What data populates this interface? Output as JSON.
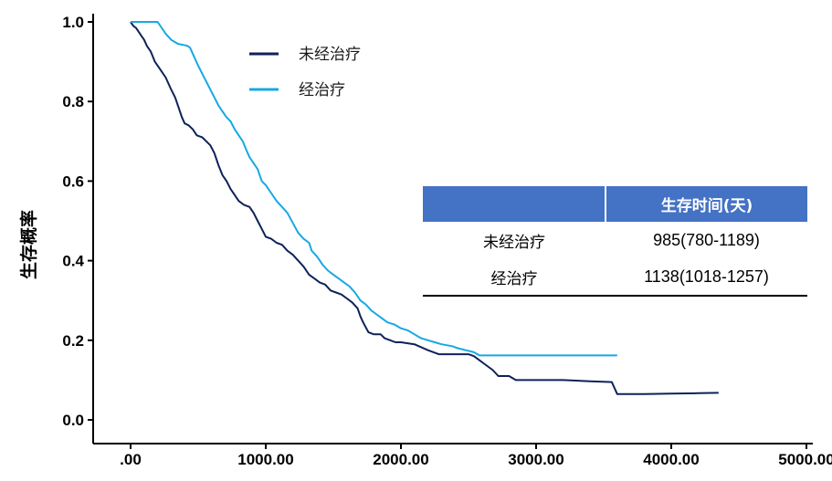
{
  "chart_data": {
    "type": "line",
    "title": "",
    "xlabel": "",
    "ylabel": "生存概率",
    "xlim": [
      0,
      5000
    ],
    "ylim": [
      0,
      1.0
    ],
    "x_ticks": [
      ".00",
      "1000.00",
      "2000.00",
      "3000.00",
      "4000.00",
      "5000.00"
    ],
    "x_tick_values": [
      0,
      1000,
      2000,
      3000,
      4000,
      5000
    ],
    "y_ticks": [
      "0.0",
      "0.2",
      "0.4",
      "0.6",
      "0.8",
      "1.0"
    ],
    "y_tick_values": [
      0,
      0.2,
      0.4,
      0.6,
      0.8,
      1.0
    ],
    "legend_position": "top",
    "series": [
      {
        "name": "未经治疗",
        "color": "#0d2259",
        "points": [
          [
            0,
            1.0
          ],
          [
            20,
            0.99
          ],
          [
            40,
            0.985
          ],
          [
            60,
            0.975
          ],
          [
            80,
            0.965
          ],
          [
            100,
            0.955
          ],
          [
            120,
            0.94
          ],
          [
            150,
            0.925
          ],
          [
            180,
            0.9
          ],
          [
            220,
            0.88
          ],
          [
            260,
            0.86
          ],
          [
            300,
            0.83
          ],
          [
            330,
            0.81
          ],
          [
            360,
            0.78
          ],
          [
            380,
            0.76
          ],
          [
            400,
            0.745
          ],
          [
            430,
            0.74
          ],
          [
            460,
            0.73
          ],
          [
            490,
            0.715
          ],
          [
            530,
            0.71
          ],
          [
            560,
            0.7
          ],
          [
            590,
            0.69
          ],
          [
            620,
            0.67
          ],
          [
            650,
            0.64
          ],
          [
            680,
            0.615
          ],
          [
            710,
            0.6
          ],
          [
            740,
            0.58
          ],
          [
            770,
            0.565
          ],
          [
            800,
            0.55
          ],
          [
            840,
            0.54
          ],
          [
            880,
            0.535
          ],
          [
            910,
            0.52
          ],
          [
            940,
            0.5
          ],
          [
            970,
            0.48
          ],
          [
            1000,
            0.46
          ],
          [
            1040,
            0.455
          ],
          [
            1080,
            0.445
          ],
          [
            1120,
            0.44
          ],
          [
            1160,
            0.425
          ],
          [
            1200,
            0.415
          ],
          [
            1240,
            0.4
          ],
          [
            1280,
            0.385
          ],
          [
            1320,
            0.365
          ],
          [
            1360,
            0.355
          ],
          [
            1400,
            0.345
          ],
          [
            1440,
            0.34
          ],
          [
            1480,
            0.325
          ],
          [
            1520,
            0.32
          ],
          [
            1560,
            0.315
          ],
          [
            1600,
            0.305
          ],
          [
            1640,
            0.295
          ],
          [
            1680,
            0.28
          ],
          [
            1700,
            0.26
          ],
          [
            1720,
            0.245
          ],
          [
            1760,
            0.22
          ],
          [
            1800,
            0.215
          ],
          [
            1850,
            0.215
          ],
          [
            1880,
            0.205
          ],
          [
            1920,
            0.2
          ],
          [
            1960,
            0.195
          ],
          [
            2000,
            0.195
          ],
          [
            2100,
            0.19
          ],
          [
            2200,
            0.175
          ],
          [
            2280,
            0.165
          ],
          [
            2350,
            0.165
          ],
          [
            2500,
            0.165
          ],
          [
            2540,
            0.16
          ],
          [
            2580,
            0.15
          ],
          [
            2620,
            0.14
          ],
          [
            2680,
            0.125
          ],
          [
            2720,
            0.11
          ],
          [
            2800,
            0.11
          ],
          [
            2850,
            0.1
          ],
          [
            3000,
            0.1
          ],
          [
            3200,
            0.1
          ],
          [
            3400,
            0.097
          ],
          [
            3560,
            0.095
          ],
          [
            3600,
            0.065
          ],
          [
            3800,
            0.065
          ],
          [
            4000,
            0.066
          ],
          [
            4200,
            0.067
          ],
          [
            4350,
            0.068
          ]
        ]
      },
      {
        "name": "经治疗",
        "color": "#17a8e3",
        "points": [
          [
            0,
            1.0
          ],
          [
            100,
            1.0
          ],
          [
            200,
            1.0
          ],
          [
            230,
            0.985
          ],
          [
            260,
            0.97
          ],
          [
            300,
            0.955
          ],
          [
            350,
            0.945
          ],
          [
            420,
            0.94
          ],
          [
            440,
            0.935
          ],
          [
            460,
            0.92
          ],
          [
            480,
            0.905
          ],
          [
            500,
            0.89
          ],
          [
            530,
            0.87
          ],
          [
            560,
            0.85
          ],
          [
            590,
            0.83
          ],
          [
            620,
            0.81
          ],
          [
            650,
            0.79
          ],
          [
            680,
            0.775
          ],
          [
            710,
            0.76
          ],
          [
            740,
            0.75
          ],
          [
            770,
            0.73
          ],
          [
            800,
            0.715
          ],
          [
            830,
            0.7
          ],
          [
            860,
            0.675
          ],
          [
            880,
            0.66
          ],
          [
            910,
            0.645
          ],
          [
            940,
            0.63
          ],
          [
            970,
            0.6
          ],
          [
            1000,
            0.59
          ],
          [
            1040,
            0.57
          ],
          [
            1080,
            0.55
          ],
          [
            1120,
            0.535
          ],
          [
            1160,
            0.52
          ],
          [
            1200,
            0.495
          ],
          [
            1240,
            0.47
          ],
          [
            1280,
            0.455
          ],
          [
            1320,
            0.445
          ],
          [
            1340,
            0.425
          ],
          [
            1380,
            0.41
          ],
          [
            1420,
            0.39
          ],
          [
            1460,
            0.375
          ],
          [
            1500,
            0.365
          ],
          [
            1540,
            0.355
          ],
          [
            1580,
            0.345
          ],
          [
            1620,
            0.335
          ],
          [
            1660,
            0.32
          ],
          [
            1700,
            0.3
          ],
          [
            1740,
            0.29
          ],
          [
            1780,
            0.275
          ],
          [
            1820,
            0.265
          ],
          [
            1860,
            0.255
          ],
          [
            1900,
            0.245
          ],
          [
            1950,
            0.24
          ],
          [
            2000,
            0.23
          ],
          [
            2050,
            0.225
          ],
          [
            2100,
            0.215
          ],
          [
            2150,
            0.205
          ],
          [
            2200,
            0.2
          ],
          [
            2250,
            0.195
          ],
          [
            2300,
            0.19
          ],
          [
            2380,
            0.185
          ],
          [
            2420,
            0.18
          ],
          [
            2480,
            0.175
          ],
          [
            2540,
            0.17
          ],
          [
            2580,
            0.162
          ],
          [
            2800,
            0.162
          ],
          [
            3000,
            0.162
          ],
          [
            3300,
            0.162
          ],
          [
            3600,
            0.162
          ]
        ]
      }
    ],
    "table": {
      "header": [
        "",
        "生存时间(天)"
      ],
      "rows": [
        [
          "未经治疗",
          "985(780-1189)"
        ],
        [
          "经治疗",
          "1138(1018-1257)"
        ]
      ]
    }
  }
}
